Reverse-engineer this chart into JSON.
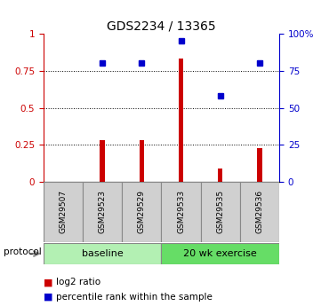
{
  "title": "GDS2234 / 13365",
  "samples": [
    "GSM29507",
    "GSM29523",
    "GSM29529",
    "GSM29533",
    "GSM29535",
    "GSM29536"
  ],
  "log2_ratio": [
    0.0,
    0.28,
    0.28,
    0.83,
    0.09,
    0.23
  ],
  "percentile_rank": [
    null,
    0.8,
    0.8,
    0.95,
    0.58,
    0.8
  ],
  "groups": [
    {
      "label": "baseline",
      "start": 0,
      "end": 3,
      "color": "#b3f0b3"
    },
    {
      "label": "20 wk exercise",
      "start": 3,
      "end": 6,
      "color": "#66dd66"
    }
  ],
  "bar_color": "#cc0000",
  "dot_color": "#0000cc",
  "left_axis_color": "#cc0000",
  "right_axis_color": "#0000cc",
  "left_yticks": [
    0,
    0.25,
    0.5,
    0.75,
    1.0
  ],
  "right_yticks": [
    0,
    25,
    50,
    75,
    100
  ],
  "ylim": [
    0,
    1.0
  ],
  "grid_lines": [
    0.25,
    0.5,
    0.75
  ],
  "legend_items": [
    "log2 ratio",
    "percentile rank within the sample"
  ],
  "protocol_label": "protocol",
  "sample_box_color": "#d0d0d0",
  "bar_width": 0.12
}
